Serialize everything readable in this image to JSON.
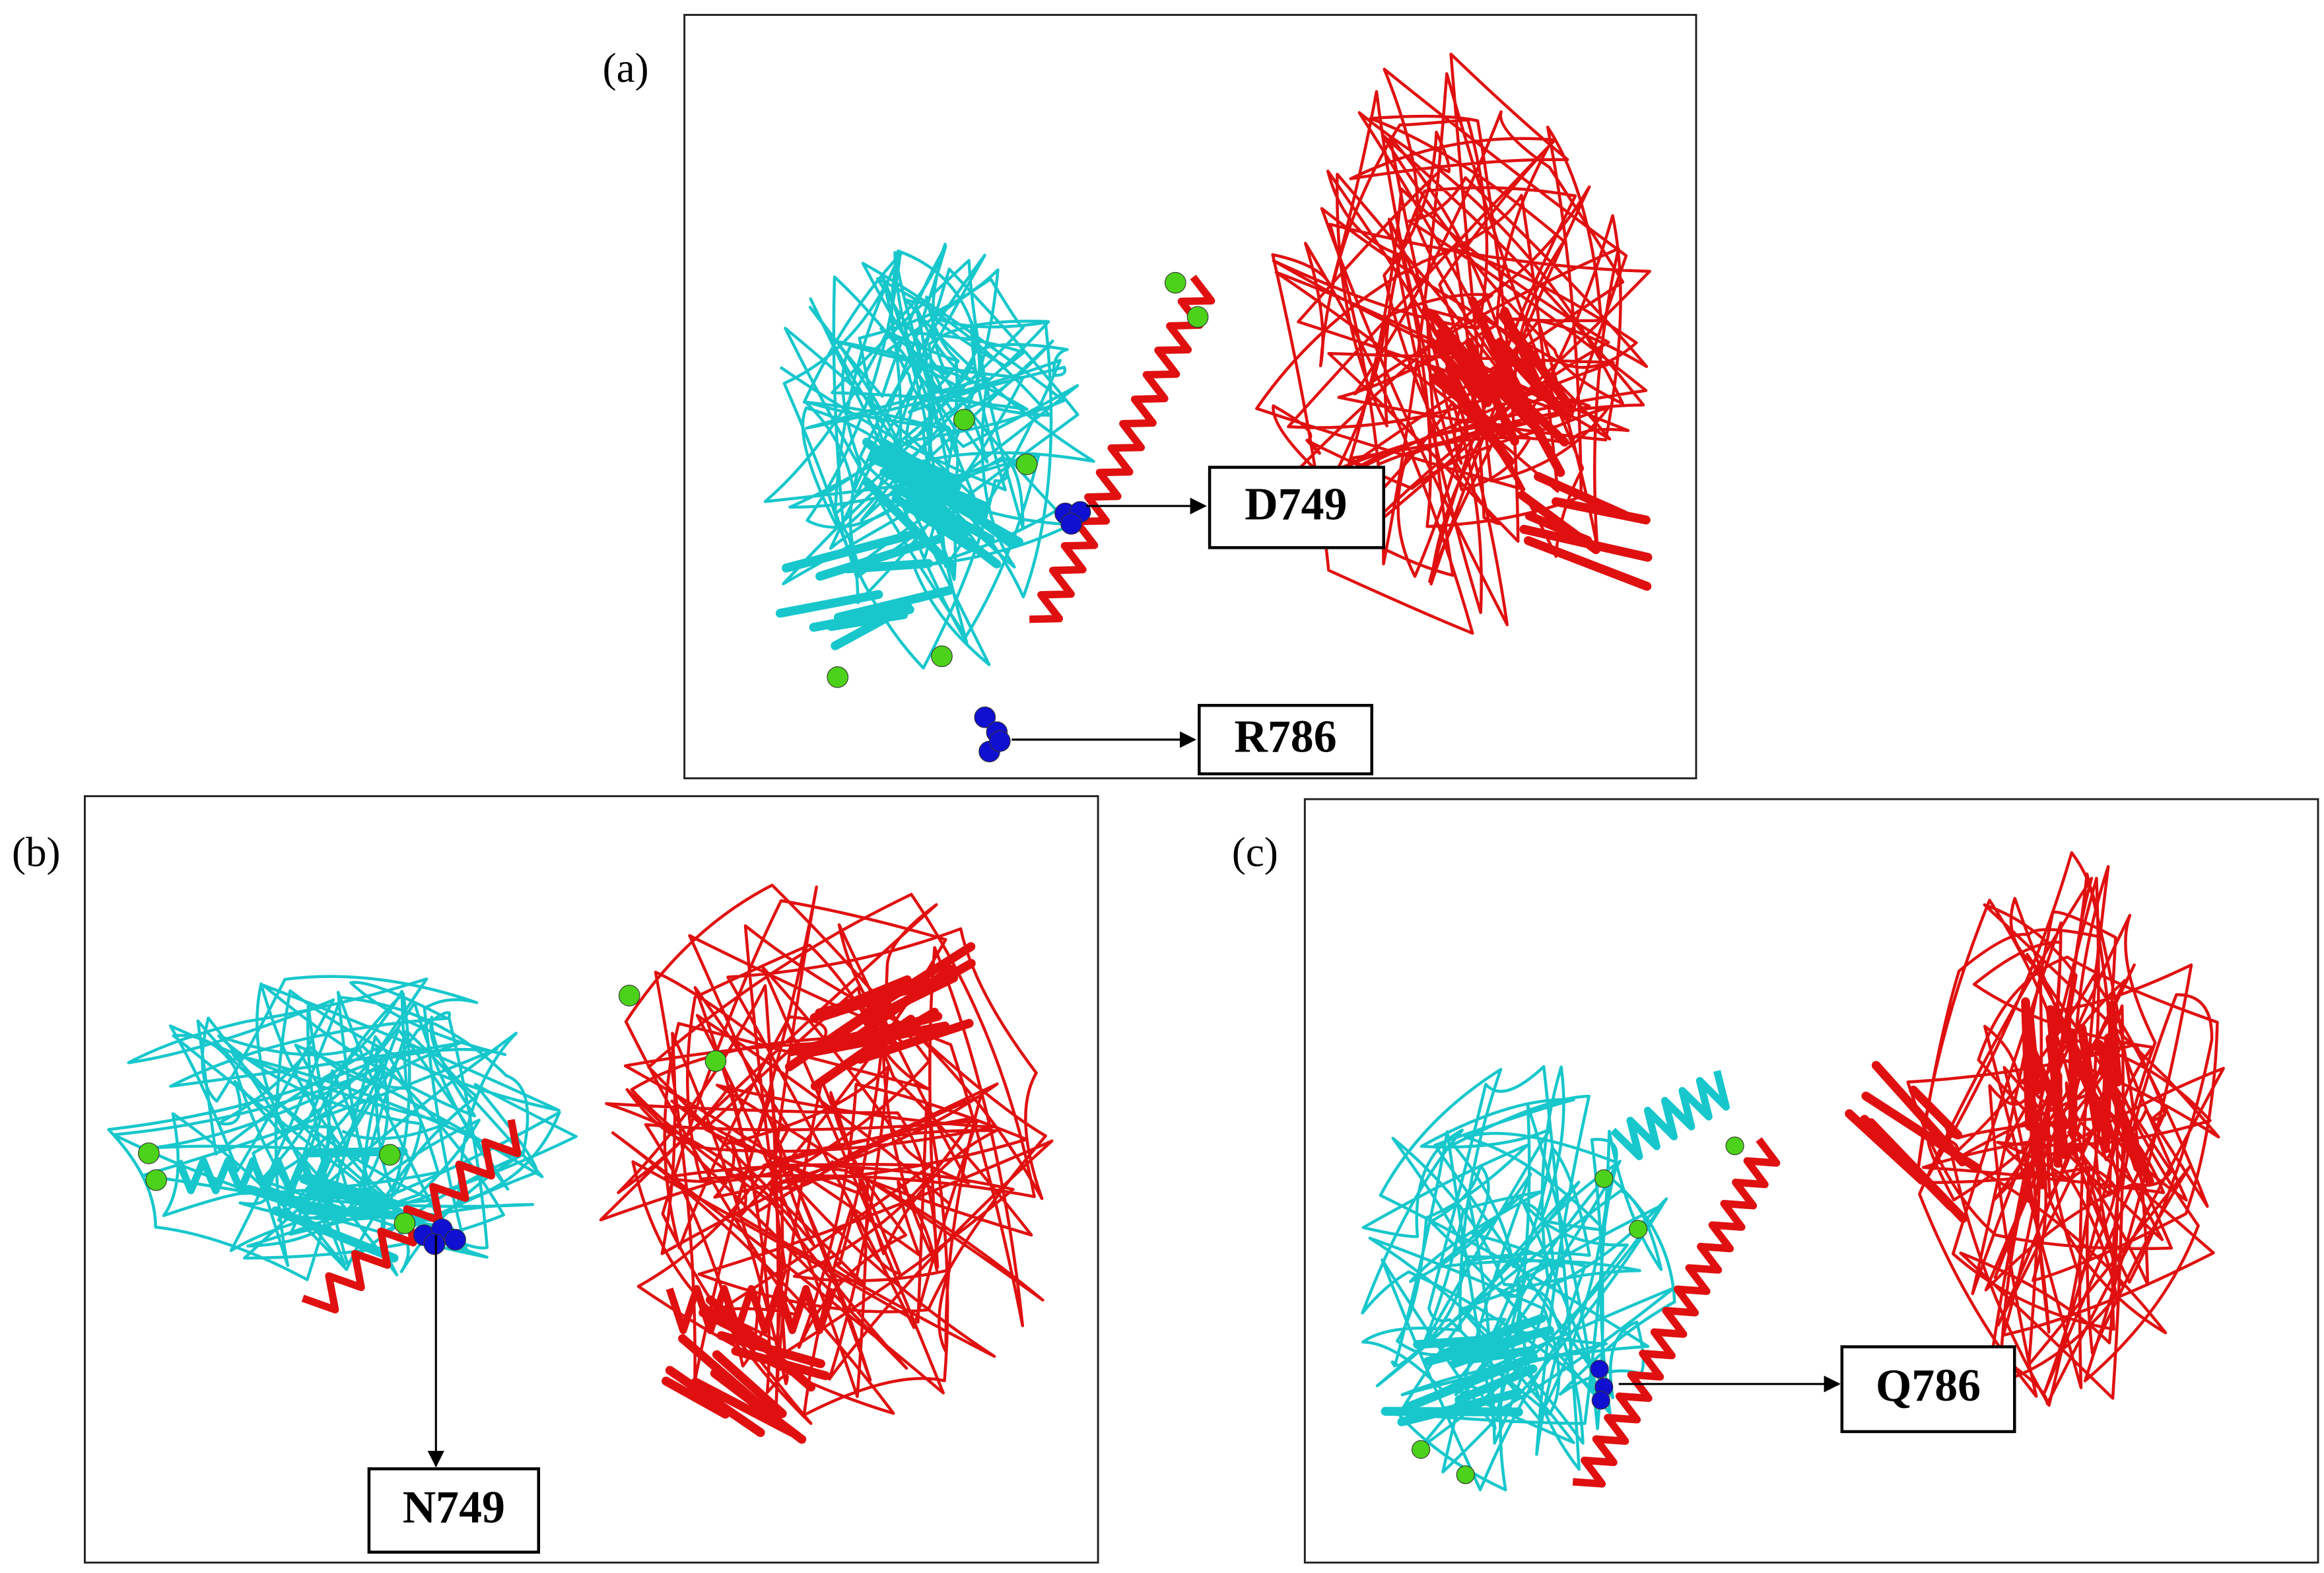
{
  "panels": [
    {
      "label": "(a)",
      "residues": [
        "D749",
        "R786"
      ]
    },
    {
      "label": "(b)",
      "residues": [
        "N749"
      ]
    },
    {
      "label": "(c)",
      "residues": [
        "Q786"
      ]
    }
  ]
}
